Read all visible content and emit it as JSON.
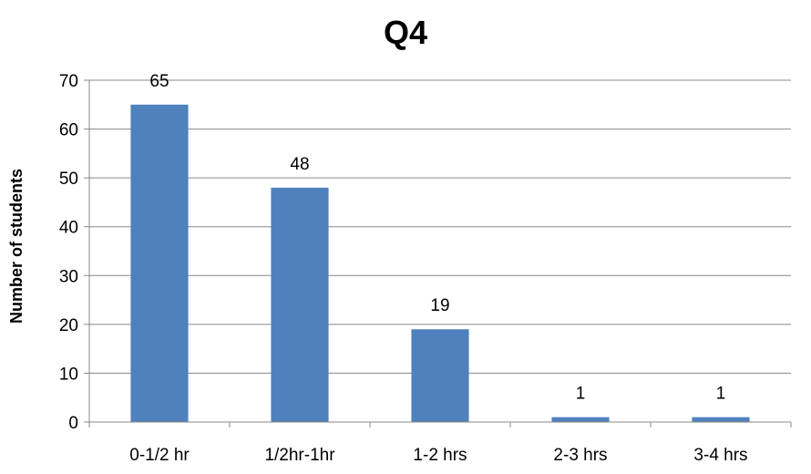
{
  "chart_data": {
    "type": "bar",
    "title": "Q4",
    "xlabel": "",
    "ylabel": "Number of students",
    "categories": [
      "0-1/2 hr",
      "1/2hr-1hr",
      "1-2 hrs",
      "2-3 hrs",
      "3-4 hrs"
    ],
    "values": [
      65,
      48,
      19,
      1,
      1
    ],
    "ylim": [
      0,
      70
    ],
    "yticks": [
      0,
      10,
      20,
      30,
      40,
      50,
      60,
      70
    ],
    "grid": true,
    "legend": "none",
    "bar_color": "#4F81BD",
    "show_data_labels": true
  }
}
